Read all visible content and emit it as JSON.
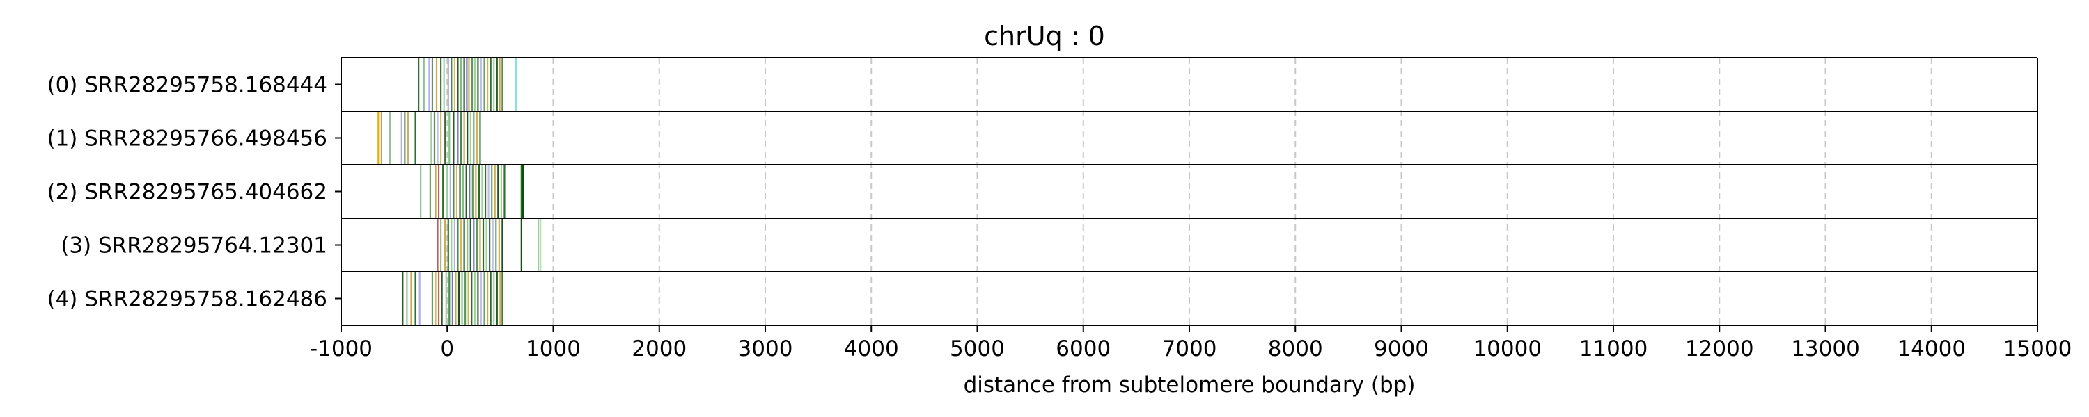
{
  "chart_data": {
    "type": "bar",
    "title": "chrUq : 0",
    "xlabel": "distance from subtelomere boundary (bp)",
    "ylabel": "",
    "xlim": [
      -1000,
      15000
    ],
    "xticks": [
      -1000,
      0,
      1000,
      2000,
      3000,
      4000,
      5000,
      6000,
      7000,
      8000,
      9000,
      10000,
      11000,
      12000,
      13000,
      14000,
      15000
    ],
    "grid": "vertical dashed",
    "reads": [
      {
        "label": "(0) SRR28295758.168444",
        "marks": [
          {
            "x": -270,
            "color": "#2f6f2f"
          },
          {
            "x": -220,
            "color": "#8fbf8f"
          },
          {
            "x": -170,
            "color": "#b0b0ff"
          },
          {
            "x": -140,
            "color": "#6a8f6a"
          },
          {
            "x": -100,
            "color": "#c8a848"
          },
          {
            "x": -60,
            "color": "#3a7a3a"
          },
          {
            "x": -30,
            "color": "#9ad09a"
          },
          {
            "x": 10,
            "color": "#aaaadd"
          },
          {
            "x": 40,
            "color": "#4a8a4a"
          },
          {
            "x": 70,
            "color": "#d8b860"
          },
          {
            "x": 100,
            "color": "#2e5e2e"
          },
          {
            "x": 130,
            "color": "#80c080"
          },
          {
            "x": 160,
            "color": "#1f4f1f"
          },
          {
            "x": 185,
            "color": "#7070c0"
          },
          {
            "x": 205,
            "color": "#c8a848"
          },
          {
            "x": 235,
            "color": "#5a9a5a"
          },
          {
            "x": 260,
            "color": "#a0d0a0"
          },
          {
            "x": 290,
            "color": "#3a6a3a"
          },
          {
            "x": 320,
            "color": "#c0c0ee"
          },
          {
            "x": 350,
            "color": "#6aa06a"
          },
          {
            "x": 380,
            "color": "#d0b050"
          },
          {
            "x": 410,
            "color": "#2f6f2f"
          },
          {
            "x": 440,
            "color": "#9bd09b"
          },
          {
            "x": 470,
            "color": "#2a5a2a"
          },
          {
            "x": 495,
            "color": "#c8a848"
          },
          {
            "x": 520,
            "color": "#5a8a5a"
          },
          {
            "x": 650,
            "color": "#7fe0e0"
          }
        ]
      },
      {
        "label": "(1) SRR28295766.498456",
        "marks": [
          {
            "x": -650,
            "color": "#e0b000"
          },
          {
            "x": -620,
            "color": "#c0a060"
          },
          {
            "x": -540,
            "color": "#9ac09a"
          },
          {
            "x": -430,
            "color": "#b0b0d8"
          },
          {
            "x": -400,
            "color": "#6a8a6a"
          },
          {
            "x": -370,
            "color": "#c8b070"
          },
          {
            "x": -300,
            "color": "#2f6f2f"
          },
          {
            "x": -150,
            "color": "#9ad09a"
          },
          {
            "x": -120,
            "color": "#5a8a5a"
          },
          {
            "x": -90,
            "color": "#c0c0ee"
          },
          {
            "x": -60,
            "color": "#d8b860"
          },
          {
            "x": -20,
            "color": "#3a6a3a"
          },
          {
            "x": 20,
            "color": "#80c080"
          },
          {
            "x": 60,
            "color": "#2a5a2a"
          },
          {
            "x": 100,
            "color": "#8080c8"
          },
          {
            "x": 130,
            "color": "#4a8a4a"
          },
          {
            "x": 160,
            "color": "#c8a848"
          },
          {
            "x": 190,
            "color": "#1f4f1f"
          },
          {
            "x": 220,
            "color": "#a0d0a0"
          },
          {
            "x": 250,
            "color": "#6aa06a"
          },
          {
            "x": 280,
            "color": "#d0b050"
          },
          {
            "x": 310,
            "color": "#3a7a3a"
          }
        ]
      },
      {
        "label": "(2) SRR28295765.404662",
        "marks": [
          {
            "x": -250,
            "color": "#8fbf8f"
          },
          {
            "x": -160,
            "color": "#6a9a6a"
          },
          {
            "x": -110,
            "color": "#c8a848"
          },
          {
            "x": -80,
            "color": "#c06060"
          },
          {
            "x": -40,
            "color": "#2f6f2f"
          },
          {
            "x": 0,
            "color": "#9ad09a"
          },
          {
            "x": 30,
            "color": "#b0b0e0"
          },
          {
            "x": 60,
            "color": "#4a8a4a"
          },
          {
            "x": 90,
            "color": "#d8b860"
          },
          {
            "x": 120,
            "color": "#1f5f1f"
          },
          {
            "x": 150,
            "color": "#80c080"
          },
          {
            "x": 180,
            "color": "#2e5e2e"
          },
          {
            "x": 210,
            "color": "#7070c0"
          },
          {
            "x": 240,
            "color": "#5a9a5a"
          },
          {
            "x": 270,
            "color": "#c8a848"
          },
          {
            "x": 300,
            "color": "#2a6a2a"
          },
          {
            "x": 330,
            "color": "#a0d0a0"
          },
          {
            "x": 360,
            "color": "#3a6a3a"
          },
          {
            "x": 390,
            "color": "#c0c0ee"
          },
          {
            "x": 420,
            "color": "#6aa06a"
          },
          {
            "x": 450,
            "color": "#d0b050"
          },
          {
            "x": 480,
            "color": "#1f4f1f"
          },
          {
            "x": 510,
            "color": "#9bd09b"
          },
          {
            "x": 540,
            "color": "#2f6f2f"
          },
          {
            "x": 700,
            "color": "#1a6a1a"
          },
          {
            "x": 715,
            "color": "#0f4f0f"
          }
        ]
      },
      {
        "label": "(3) SRR28295764.12301",
        "marks": [
          {
            "x": -90,
            "color": "#c06060"
          },
          {
            "x": -60,
            "color": "#8fbf8f"
          },
          {
            "x": -20,
            "color": "#c8a848"
          },
          {
            "x": 10,
            "color": "#2f6f2f"
          },
          {
            "x": 40,
            "color": "#9ad09a"
          },
          {
            "x": 70,
            "color": "#b0b0e0"
          },
          {
            "x": 100,
            "color": "#4a8a4a"
          },
          {
            "x": 130,
            "color": "#d8b860"
          },
          {
            "x": 160,
            "color": "#1f5f1f"
          },
          {
            "x": 190,
            "color": "#80c080"
          },
          {
            "x": 220,
            "color": "#2e5e2e"
          },
          {
            "x": 250,
            "color": "#7070c0"
          },
          {
            "x": 280,
            "color": "#5a9a5a"
          },
          {
            "x": 310,
            "color": "#c8a848"
          },
          {
            "x": 340,
            "color": "#2a6a2a"
          },
          {
            "x": 370,
            "color": "#a0d0a0"
          },
          {
            "x": 400,
            "color": "#3a6a3a"
          },
          {
            "x": 430,
            "color": "#c0c0ee"
          },
          {
            "x": 460,
            "color": "#6aa06a"
          },
          {
            "x": 490,
            "color": "#d0b050"
          },
          {
            "x": 520,
            "color": "#1f4f1f"
          },
          {
            "x": 700,
            "color": "#0f4f0f"
          },
          {
            "x": 860,
            "color": "#9ad09a"
          },
          {
            "x": 880,
            "color": "#b8e0b8"
          }
        ]
      },
      {
        "label": "(4) SRR28295758.162486",
        "marks": [
          {
            "x": -420,
            "color": "#1f5f1f"
          },
          {
            "x": -380,
            "color": "#8fbf8f"
          },
          {
            "x": -340,
            "color": "#c8a848"
          },
          {
            "x": -300,
            "color": "#2f6f2f"
          },
          {
            "x": -260,
            "color": "#b0b0e0"
          },
          {
            "x": -140,
            "color": "#6a9a6a"
          },
          {
            "x": -110,
            "color": "#d8b860"
          },
          {
            "x": -80,
            "color": "#c06060"
          },
          {
            "x": -50,
            "color": "#2e5e2e"
          },
          {
            "x": -10,
            "color": "#9ad09a"
          },
          {
            "x": 20,
            "color": "#4a8a4a"
          },
          {
            "x": 50,
            "color": "#7070c0"
          },
          {
            "x": 80,
            "color": "#c8a848"
          },
          {
            "x": 110,
            "color": "#1f4f1f"
          },
          {
            "x": 140,
            "color": "#80c080"
          },
          {
            "x": 170,
            "color": "#5a9a5a"
          },
          {
            "x": 200,
            "color": "#d0b050"
          },
          {
            "x": 230,
            "color": "#2a6a2a"
          },
          {
            "x": 260,
            "color": "#a0d0a0"
          },
          {
            "x": 290,
            "color": "#3a6a3a"
          },
          {
            "x": 320,
            "color": "#c0c0ee"
          },
          {
            "x": 350,
            "color": "#6aa06a"
          },
          {
            "x": 380,
            "color": "#c8a848"
          },
          {
            "x": 410,
            "color": "#2f6f2f"
          },
          {
            "x": 440,
            "color": "#9bd09b"
          },
          {
            "x": 470,
            "color": "#1f5f1f"
          },
          {
            "x": 500,
            "color": "#d0b050"
          },
          {
            "x": 520,
            "color": "#3a7a3a"
          }
        ]
      }
    ]
  }
}
